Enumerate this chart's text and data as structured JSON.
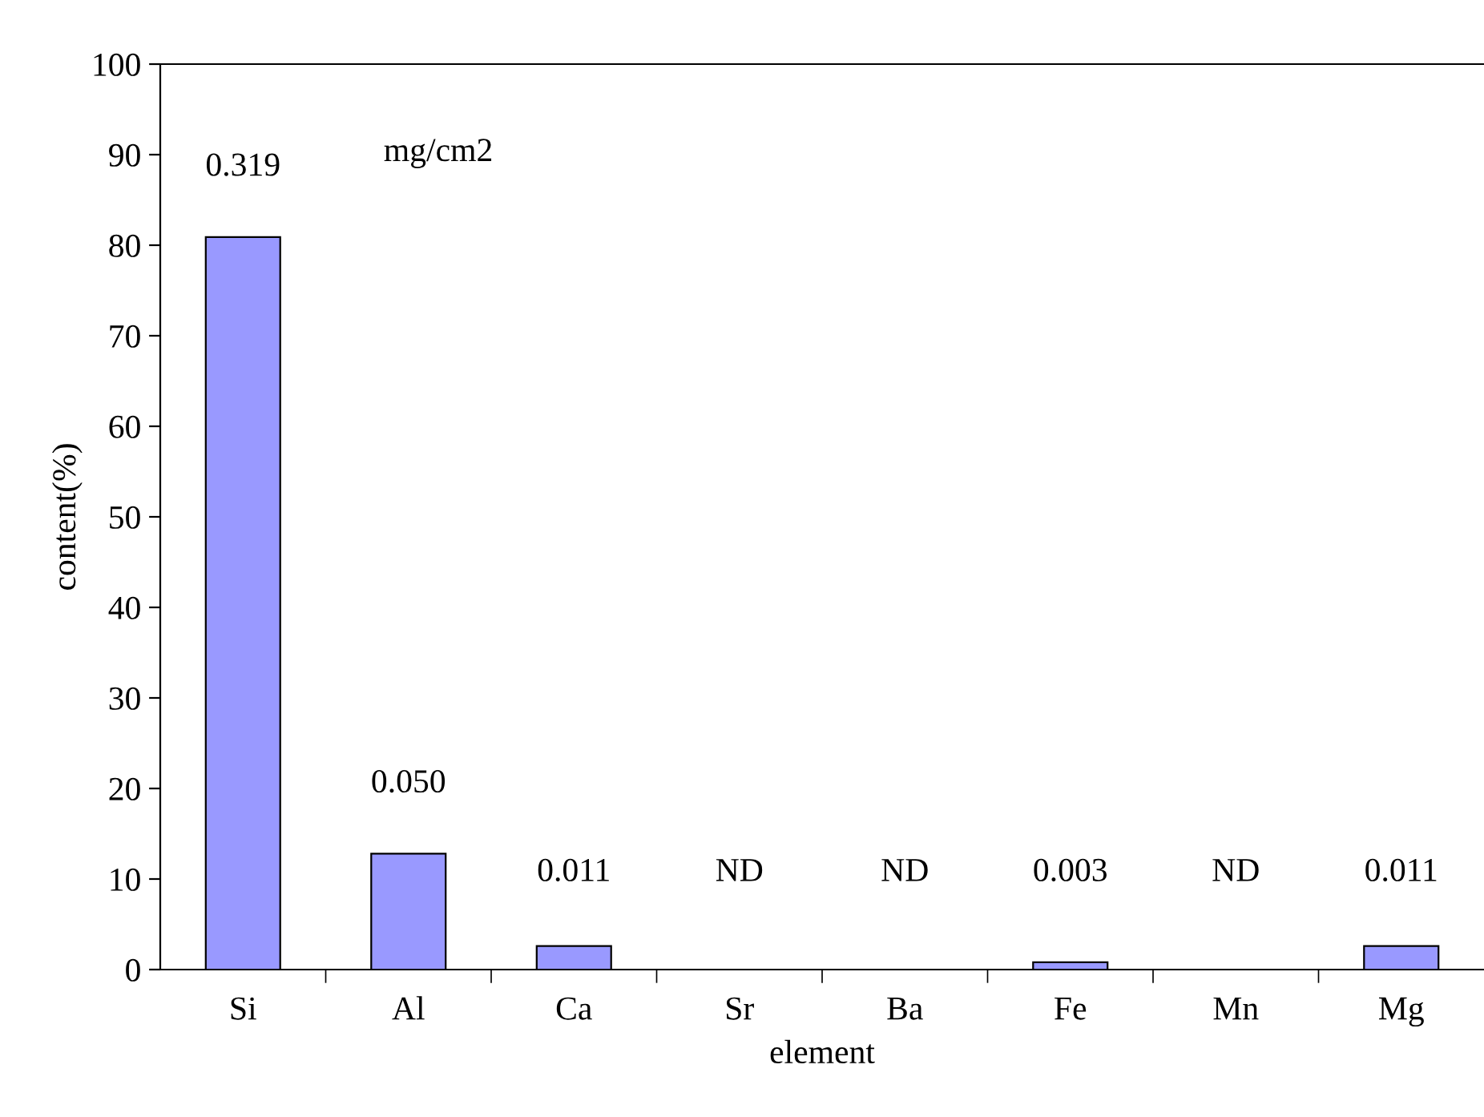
{
  "chart_data": {
    "type": "bar",
    "xlabel": "element",
    "ylabel": "content(%)",
    "categories": [
      "Si",
      "Al",
      "Ca",
      "Sr",
      "Ba",
      "Fe",
      "Mn",
      "Mg"
    ],
    "values": [
      80.9,
      12.8,
      2.6,
      null,
      null,
      0.8,
      null,
      2.6
    ],
    "color": "#9999ff",
    "annotations": [
      "0.319",
      "0.050",
      "0.011",
      "ND",
      "ND",
      "0.003",
      "ND",
      "0.011",
      "mg/cm2"
    ],
    "ylim": [
      0,
      100
    ],
    "yticks": [
      0,
      10,
      20,
      30,
      40,
      50,
      60,
      70,
      80,
      90,
      100
    ],
    "grid": false
  }
}
